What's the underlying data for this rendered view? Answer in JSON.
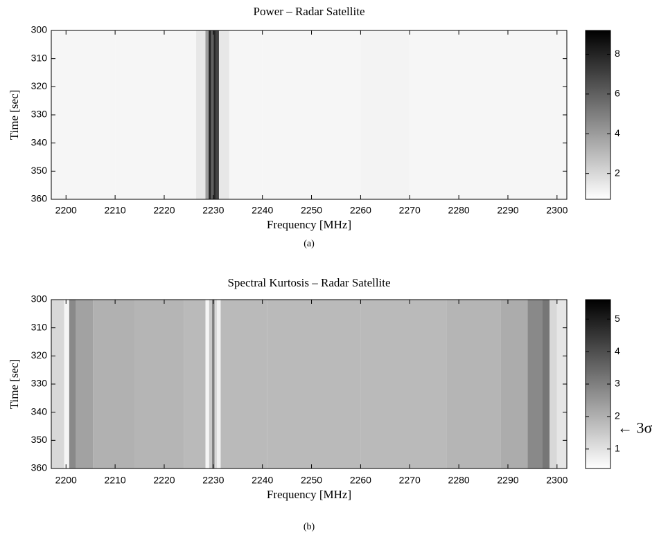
{
  "chart_data": [
    {
      "type": "heatmap",
      "title": "Power – Radar Satellite",
      "xlabel": "Frequency [MHz]",
      "ylabel": "Time [sec]",
      "caption": "(a)",
      "x": [
        2199,
        2205,
        2215,
        2225,
        2228,
        2228.8,
        2229.3,
        2229.8,
        2230.3,
        2230.8,
        2231.5,
        2235,
        2245,
        2255,
        2265,
        2275,
        2285,
        2295,
        2301
      ],
      "values": [
        1,
        1,
        1,
        1,
        1.5,
        4,
        8,
        6,
        8,
        7,
        1.5,
        1,
        1,
        1,
        1.1,
        1,
        1,
        1,
        1
      ],
      "xlim": [
        2197,
        2302
      ],
      "xticks": [
        2200,
        2210,
        2220,
        2230,
        2240,
        2250,
        2260,
        2270,
        2280,
        2290,
        2300
      ],
      "ylim": [
        300,
        360
      ],
      "yticks": [
        300,
        310,
        320,
        330,
        340,
        350,
        360
      ],
      "y_inverted": true,
      "clim": [
        0.7,
        9.2
      ],
      "cticks": [
        2,
        4,
        6,
        8
      ],
      "colormap": "gray-reversed"
    },
    {
      "type": "heatmap",
      "title": "Spectral Kurtosis – Radar Satellite",
      "xlabel": "Frequency [MHz]",
      "ylabel": "Time [sec]",
      "caption": "(b)",
      "x": [
        2199,
        2200.3,
        2201,
        2203,
        2208,
        2220,
        2228,
        2228.8,
        2229.5,
        2230,
        2230.5,
        2231,
        2232,
        2250,
        2270,
        2285,
        2292,
        2296,
        2298,
        2299,
        2301
      ],
      "values": [
        1.2,
        0.6,
        2.8,
        2.3,
        2.0,
        1.9,
        1.8,
        0.6,
        1.5,
        3.0,
        1.2,
        0.7,
        1.8,
        1.8,
        1.8,
        1.9,
        2.1,
        2.8,
        3.2,
        1.2,
        0.9
      ],
      "xlim": [
        2197,
        2302
      ],
      "xticks": [
        2200,
        2210,
        2220,
        2230,
        2240,
        2250,
        2260,
        2270,
        2280,
        2290,
        2300
      ],
      "ylim": [
        300,
        360
      ],
      "yticks": [
        300,
        310,
        320,
        330,
        340,
        350,
        360
      ],
      "y_inverted": true,
      "clim": [
        0.4,
        5.6
      ],
      "cticks": [
        1,
        2,
        3,
        4,
        5
      ],
      "colormap": "gray-reversed",
      "annotation": {
        "text": "← 3σ",
        "value": 1.65
      }
    }
  ]
}
